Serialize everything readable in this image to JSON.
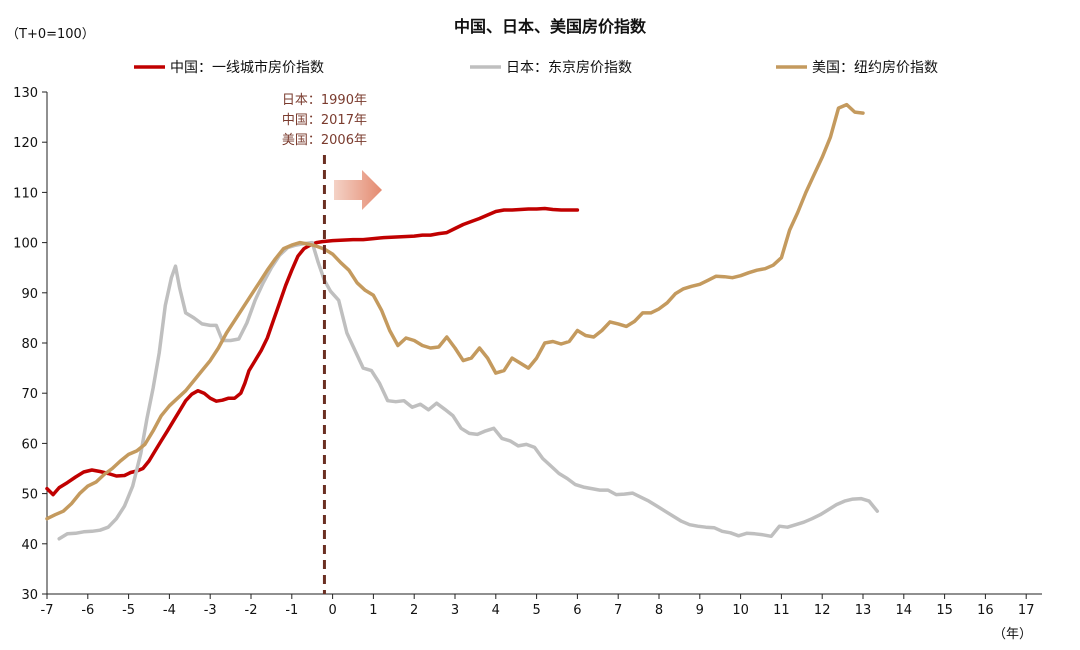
{
  "chart_data": {
    "type": "line",
    "title": "中国、日本、美国房价指数",
    "unit_label": "（T+0=100）",
    "xlabel": "（年）",
    "ylabel": "",
    "xlim": [
      -7,
      17.3
    ],
    "ylim": [
      30,
      130
    ],
    "x_ticks": [
      -7,
      -6,
      -5,
      -4,
      -3,
      -2,
      -1,
      0,
      1,
      2,
      3,
      4,
      5,
      6,
      7,
      8,
      9,
      10,
      11,
      12,
      13,
      14,
      15,
      16,
      17
    ],
    "y_ticks": [
      30,
      40,
      50,
      60,
      70,
      80,
      90,
      100,
      110,
      120,
      130
    ],
    "legend_position": "top",
    "grid": false,
    "annotation": {
      "x": -0.2,
      "lines": [
        "日本：1990年",
        "中国：2017年",
        "美国：2006年"
      ]
    },
    "series": [
      {
        "name": "中国：一线城市房价指数",
        "color": "#c00000",
        "points": [
          [
            -7,
            51
          ],
          [
            -6.85,
            49.8
          ],
          [
            -6.7,
            51.2
          ],
          [
            -6.5,
            52.2
          ],
          [
            -6.3,
            53.3
          ],
          [
            -6.1,
            54.3
          ],
          [
            -5.9,
            54.7
          ],
          [
            -5.7,
            54.4
          ],
          [
            -5.5,
            54
          ],
          [
            -5.3,
            53.5
          ],
          [
            -5.1,
            53.6
          ],
          [
            -4.95,
            54.2
          ],
          [
            -4.8,
            54.5
          ],
          [
            -4.65,
            55
          ],
          [
            -4.5,
            56.5
          ],
          [
            -4.35,
            58.5
          ],
          [
            -4.2,
            60.5
          ],
          [
            -4.05,
            62.5
          ],
          [
            -3.9,
            64.5
          ],
          [
            -3.75,
            66.5
          ],
          [
            -3.6,
            68.5
          ],
          [
            -3.45,
            69.8
          ],
          [
            -3.3,
            70.5
          ],
          [
            -3.15,
            70
          ],
          [
            -3.0,
            69
          ],
          [
            -2.85,
            68.4
          ],
          [
            -2.7,
            68.6
          ],
          [
            -2.55,
            69
          ],
          [
            -2.4,
            69
          ],
          [
            -2.25,
            70
          ],
          [
            -2.15,
            72
          ],
          [
            -2.05,
            74.5
          ],
          [
            -1.9,
            76.5
          ],
          [
            -1.75,
            78.5
          ],
          [
            -1.6,
            81
          ],
          [
            -1.45,
            84.5
          ],
          [
            -1.3,
            88
          ],
          [
            -1.15,
            91.5
          ],
          [
            -1.0,
            94.5
          ],
          [
            -0.85,
            97.3
          ],
          [
            -0.7,
            98.8
          ],
          [
            -0.55,
            99.5
          ],
          [
            -0.4,
            100
          ],
          [
            -0.25,
            100.2
          ],
          [
            0,
            100.4
          ],
          [
            0.25,
            100.5
          ],
          [
            0.5,
            100.6
          ],
          [
            0.75,
            100.6
          ],
          [
            1.0,
            100.8
          ],
          [
            1.25,
            101
          ],
          [
            1.5,
            101.1
          ],
          [
            1.75,
            101.2
          ],
          [
            2.0,
            101.3
          ],
          [
            2.2,
            101.5
          ],
          [
            2.4,
            101.5
          ],
          [
            2.6,
            101.8
          ],
          [
            2.8,
            102
          ],
          [
            3.0,
            102.8
          ],
          [
            3.2,
            103.6
          ],
          [
            3.4,
            104.2
          ],
          [
            3.6,
            104.8
          ],
          [
            3.8,
            105.5
          ],
          [
            4.0,
            106.2
          ],
          [
            4.2,
            106.5
          ],
          [
            4.4,
            106.5
          ],
          [
            4.6,
            106.6
          ],
          [
            4.8,
            106.7
          ],
          [
            5.0,
            106.7
          ],
          [
            5.2,
            106.8
          ],
          [
            5.4,
            106.6
          ],
          [
            5.6,
            106.5
          ],
          [
            5.8,
            106.5
          ],
          [
            6.0,
            106.5
          ]
        ]
      },
      {
        "name": "日本：东京房价指数",
        "color": "#bfbfbf",
        "points": [
          [
            -6.7,
            41
          ],
          [
            -6.5,
            42
          ],
          [
            -6.3,
            42.1
          ],
          [
            -6.1,
            42.4
          ],
          [
            -5.9,
            42.5
          ],
          [
            -5.7,
            42.7
          ],
          [
            -5.5,
            43.3
          ],
          [
            -5.3,
            45
          ],
          [
            -5.1,
            47.5
          ],
          [
            -4.9,
            51.5
          ],
          [
            -4.7,
            58
          ],
          [
            -4.55,
            65
          ],
          [
            -4.4,
            71
          ],
          [
            -4.25,
            78
          ],
          [
            -4.1,
            87.5
          ],
          [
            -3.95,
            93
          ],
          [
            -3.85,
            95.3
          ],
          [
            -3.75,
            91
          ],
          [
            -3.6,
            86
          ],
          [
            -3.4,
            85
          ],
          [
            -3.2,
            83.8
          ],
          [
            -3.0,
            83.5
          ],
          [
            -2.85,
            83.5
          ],
          [
            -2.7,
            80.5
          ],
          [
            -2.5,
            80.5
          ],
          [
            -2.3,
            80.8
          ],
          [
            -2.1,
            84
          ],
          [
            -1.9,
            88.5
          ],
          [
            -1.7,
            92
          ],
          [
            -1.5,
            95
          ],
          [
            -1.3,
            97.5
          ],
          [
            -1.1,
            99
          ],
          [
            -0.9,
            99.5
          ],
          [
            -0.7,
            99.8
          ],
          [
            -0.5,
            100
          ],
          [
            -0.35,
            96
          ],
          [
            -0.2,
            92.5
          ],
          [
            -0.05,
            90.3
          ],
          [
            0.15,
            88.5
          ],
          [
            0.35,
            82
          ],
          [
            0.55,
            78.5
          ],
          [
            0.75,
            75
          ],
          [
            0.95,
            74.5
          ],
          [
            1.15,
            72
          ],
          [
            1.35,
            68.5
          ],
          [
            1.55,
            68.3
          ],
          [
            1.75,
            68.5
          ],
          [
            1.95,
            67.2
          ],
          [
            2.15,
            67.8
          ],
          [
            2.35,
            66.7
          ],
          [
            2.55,
            68
          ],
          [
            2.75,
            66.8
          ],
          [
            2.95,
            65.5
          ],
          [
            3.15,
            63
          ],
          [
            3.35,
            62
          ],
          [
            3.55,
            61.8
          ],
          [
            3.75,
            62.5
          ],
          [
            3.95,
            63
          ],
          [
            4.15,
            61
          ],
          [
            4.35,
            60.5
          ],
          [
            4.55,
            59.5
          ],
          [
            4.75,
            59.8
          ],
          [
            4.95,
            59.2
          ],
          [
            5.15,
            57
          ],
          [
            5.35,
            55.5
          ],
          [
            5.55,
            54
          ],
          [
            5.75,
            53
          ],
          [
            5.95,
            51.8
          ],
          [
            6.15,
            51.3
          ],
          [
            6.35,
            51
          ],
          [
            6.55,
            50.7
          ],
          [
            6.75,
            50.7
          ],
          [
            6.95,
            49.8
          ],
          [
            7.15,
            49.9
          ],
          [
            7.35,
            50.1
          ],
          [
            7.55,
            49.3
          ],
          [
            7.75,
            48.5
          ],
          [
            7.95,
            47.5
          ],
          [
            8.15,
            46.5
          ],
          [
            8.35,
            45.5
          ],
          [
            8.55,
            44.5
          ],
          [
            8.75,
            43.8
          ],
          [
            8.95,
            43.5
          ],
          [
            9.15,
            43.3
          ],
          [
            9.35,
            43.2
          ],
          [
            9.55,
            42.5
          ],
          [
            9.75,
            42.2
          ],
          [
            9.95,
            41.6
          ],
          [
            10.15,
            42.1
          ],
          [
            10.35,
            42
          ],
          [
            10.55,
            41.8
          ],
          [
            10.75,
            41.5
          ],
          [
            10.95,
            43.5
          ],
          [
            11.15,
            43.3
          ],
          [
            11.35,
            43.8
          ],
          [
            11.55,
            44.3
          ],
          [
            11.75,
            45
          ],
          [
            11.95,
            45.8
          ],
          [
            12.15,
            46.8
          ],
          [
            12.35,
            47.8
          ],
          [
            12.55,
            48.5
          ],
          [
            12.75,
            48.9
          ],
          [
            12.95,
            49
          ],
          [
            13.15,
            48.5
          ],
          [
            13.35,
            46.5
          ]
        ]
      },
      {
        "name": "美国：纽约房价指数",
        "color": "#c49a5e",
        "points": [
          [
            -7,
            45
          ],
          [
            -6.8,
            45.8
          ],
          [
            -6.6,
            46.5
          ],
          [
            -6.4,
            48
          ],
          [
            -6.2,
            50
          ],
          [
            -6.0,
            51.5
          ],
          [
            -5.8,
            52.3
          ],
          [
            -5.6,
            53.8
          ],
          [
            -5.4,
            55
          ],
          [
            -5.2,
            56.5
          ],
          [
            -5.0,
            57.8
          ],
          [
            -4.8,
            58.5
          ],
          [
            -4.6,
            59.8
          ],
          [
            -4.4,
            62.5
          ],
          [
            -4.2,
            65.5
          ],
          [
            -4.0,
            67.5
          ],
          [
            -3.8,
            69
          ],
          [
            -3.6,
            70.5
          ],
          [
            -3.4,
            72.5
          ],
          [
            -3.2,
            74.5
          ],
          [
            -3.0,
            76.5
          ],
          [
            -2.8,
            79
          ],
          [
            -2.6,
            82
          ],
          [
            -2.4,
            84.5
          ],
          [
            -2.2,
            87
          ],
          [
            -2.0,
            89.5
          ],
          [
            -1.8,
            92
          ],
          [
            -1.6,
            94.5
          ],
          [
            -1.4,
            96.8
          ],
          [
            -1.2,
            98.8
          ],
          [
            -1.0,
            99.5
          ],
          [
            -0.8,
            100
          ],
          [
            -0.6,
            99.7
          ],
          [
            -0.4,
            99.3
          ],
          [
            -0.2,
            98.7
          ],
          [
            0.0,
            97.7
          ],
          [
            0.2,
            96
          ],
          [
            0.4,
            94.5
          ],
          [
            0.6,
            92
          ],
          [
            0.8,
            90.5
          ],
          [
            1.0,
            89.5
          ],
          [
            1.2,
            86.5
          ],
          [
            1.4,
            82.5
          ],
          [
            1.6,
            79.5
          ],
          [
            1.8,
            81
          ],
          [
            2.0,
            80.5
          ],
          [
            2.2,
            79.5
          ],
          [
            2.4,
            79
          ],
          [
            2.6,
            79.2
          ],
          [
            2.8,
            81.2
          ],
          [
            3.0,
            79
          ],
          [
            3.2,
            76.5
          ],
          [
            3.4,
            77
          ],
          [
            3.6,
            79
          ],
          [
            3.8,
            77
          ],
          [
            4.0,
            74
          ],
          [
            4.2,
            74.5
          ],
          [
            4.4,
            77
          ],
          [
            4.6,
            76
          ],
          [
            4.8,
            75
          ],
          [
            5.0,
            77
          ],
          [
            5.2,
            80
          ],
          [
            5.4,
            80.3
          ],
          [
            5.6,
            79.8
          ],
          [
            5.8,
            80.3
          ],
          [
            6.0,
            82.5
          ],
          [
            6.2,
            81.5
          ],
          [
            6.4,
            81.2
          ],
          [
            6.6,
            82.5
          ],
          [
            6.8,
            84.2
          ],
          [
            7.0,
            83.8
          ],
          [
            7.2,
            83.3
          ],
          [
            7.4,
            84.3
          ],
          [
            7.6,
            86
          ],
          [
            7.8,
            86
          ],
          [
            8.0,
            86.8
          ],
          [
            8.2,
            88
          ],
          [
            8.4,
            89.8
          ],
          [
            8.6,
            90.8
          ],
          [
            8.8,
            91.3
          ],
          [
            9.0,
            91.7
          ],
          [
            9.2,
            92.5
          ],
          [
            9.4,
            93.3
          ],
          [
            9.6,
            93.2
          ],
          [
            9.8,
            93
          ],
          [
            10.0,
            93.4
          ],
          [
            10.2,
            94
          ],
          [
            10.4,
            94.5
          ],
          [
            10.6,
            94.8
          ],
          [
            10.8,
            95.5
          ],
          [
            11.0,
            97
          ],
          [
            11.2,
            102.5
          ],
          [
            11.4,
            106
          ],
          [
            11.6,
            110
          ],
          [
            11.8,
            113.5
          ],
          [
            12.0,
            117
          ],
          [
            12.2,
            121
          ],
          [
            12.4,
            126.8
          ],
          [
            12.6,
            127.5
          ],
          [
            12.8,
            126
          ],
          [
            13.0,
            125.8
          ]
        ]
      }
    ]
  }
}
